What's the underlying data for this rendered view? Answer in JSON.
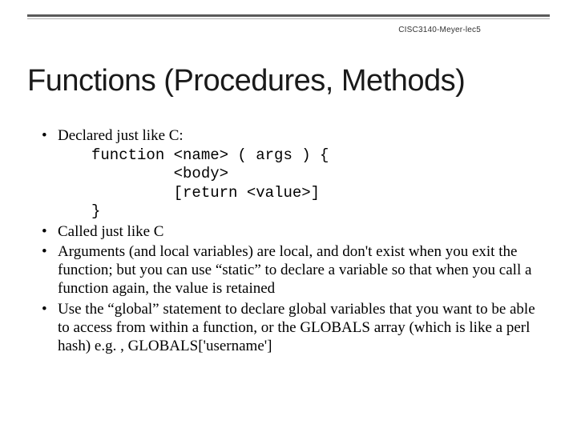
{
  "header": {
    "course_tag": "CISC3140-Meyer-lec5"
  },
  "title": "Functions (Procedures, Methods)",
  "bullets": [
    {
      "text": "Declared just like C:",
      "code": "function <name> ( args ) {\n         <body>\n         [return <value>]\n}"
    },
    {
      "text": "Called just like C"
    },
    {
      "text": "Arguments (and local variables) are local, and don't exist when you exit the function; but you can use “static” to declare a variable so that when you call a function again, the value is retained"
    },
    {
      "text": "Use the “global” statement to declare global variables that you want to be able to access from within a function, or the GLOBALS array (which  is like a perl hash) e.g. , GLOBALS['username']"
    }
  ],
  "style": {
    "background": "#ffffff",
    "title_fontsize": 38,
    "body_fontsize": 19,
    "rule_color_primary": "#5a5a5a",
    "rule_color_secondary": "#b0b0b0",
    "text_color": "#000000"
  }
}
